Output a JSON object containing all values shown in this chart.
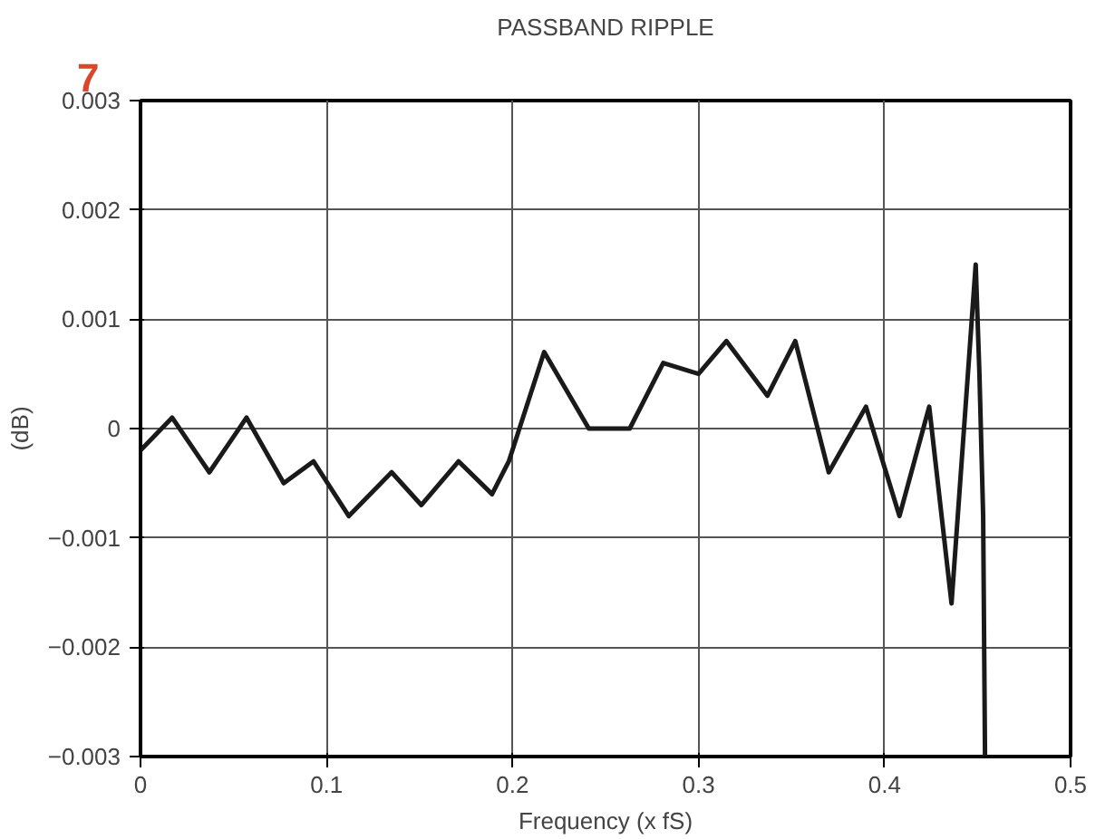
{
  "chart_data": {
    "type": "line",
    "title": "PASSBAND RIPPLE",
    "xlabel": "Frequency (x fS)",
    "ylabel": "(dB)",
    "annotations": [
      "7"
    ],
    "x": [
      0,
      0.017,
      0.037,
      0.057,
      0.077,
      0.093,
      0.112,
      0.135,
      0.151,
      0.171,
      0.189,
      0.198,
      0.217,
      0.241,
      0.254,
      0.263,
      0.281,
      0.3,
      0.315,
      0.337,
      0.352,
      0.37,
      0.39,
      0.408,
      0.424,
      0.436,
      0.449,
      0.451,
      0.453,
      0.454
    ],
    "series": [
      {
        "color": "#1a1a1a",
        "values": [
          -0.0002,
          0.0001,
          -0.0004,
          0.0001,
          -0.0005,
          -0.0003,
          -0.0008,
          -0.0004,
          -0.0007,
          -0.0003,
          -0.0006,
          -0.0003,
          0.0007,
          0,
          0,
          0,
          0.0006,
          0.0005,
          0.0008,
          0.0003,
          0.0008,
          -0.0004,
          0.0002,
          -0.0008,
          0.0002,
          -0.0016,
          0.0015,
          0.0005,
          -0.0008,
          -0.003
        ]
      }
    ],
    "xlim": [
      0,
      0.5
    ],
    "xticks": [
      0,
      0.1,
      0.2,
      0.3,
      0.4,
      0.5
    ],
    "ylim": [
      -0.003,
      0.003
    ],
    "yticks": [
      {
        "value": -0.003,
        "label": "−0.003"
      },
      {
        "value": -0.002,
        "label": "−0.002"
      },
      {
        "value": -0.001,
        "label": "−0.001"
      },
      0,
      0.001,
      0.002,
      0.003
    ],
    "grid": true,
    "marker": "none",
    "line_style": "solid"
  }
}
